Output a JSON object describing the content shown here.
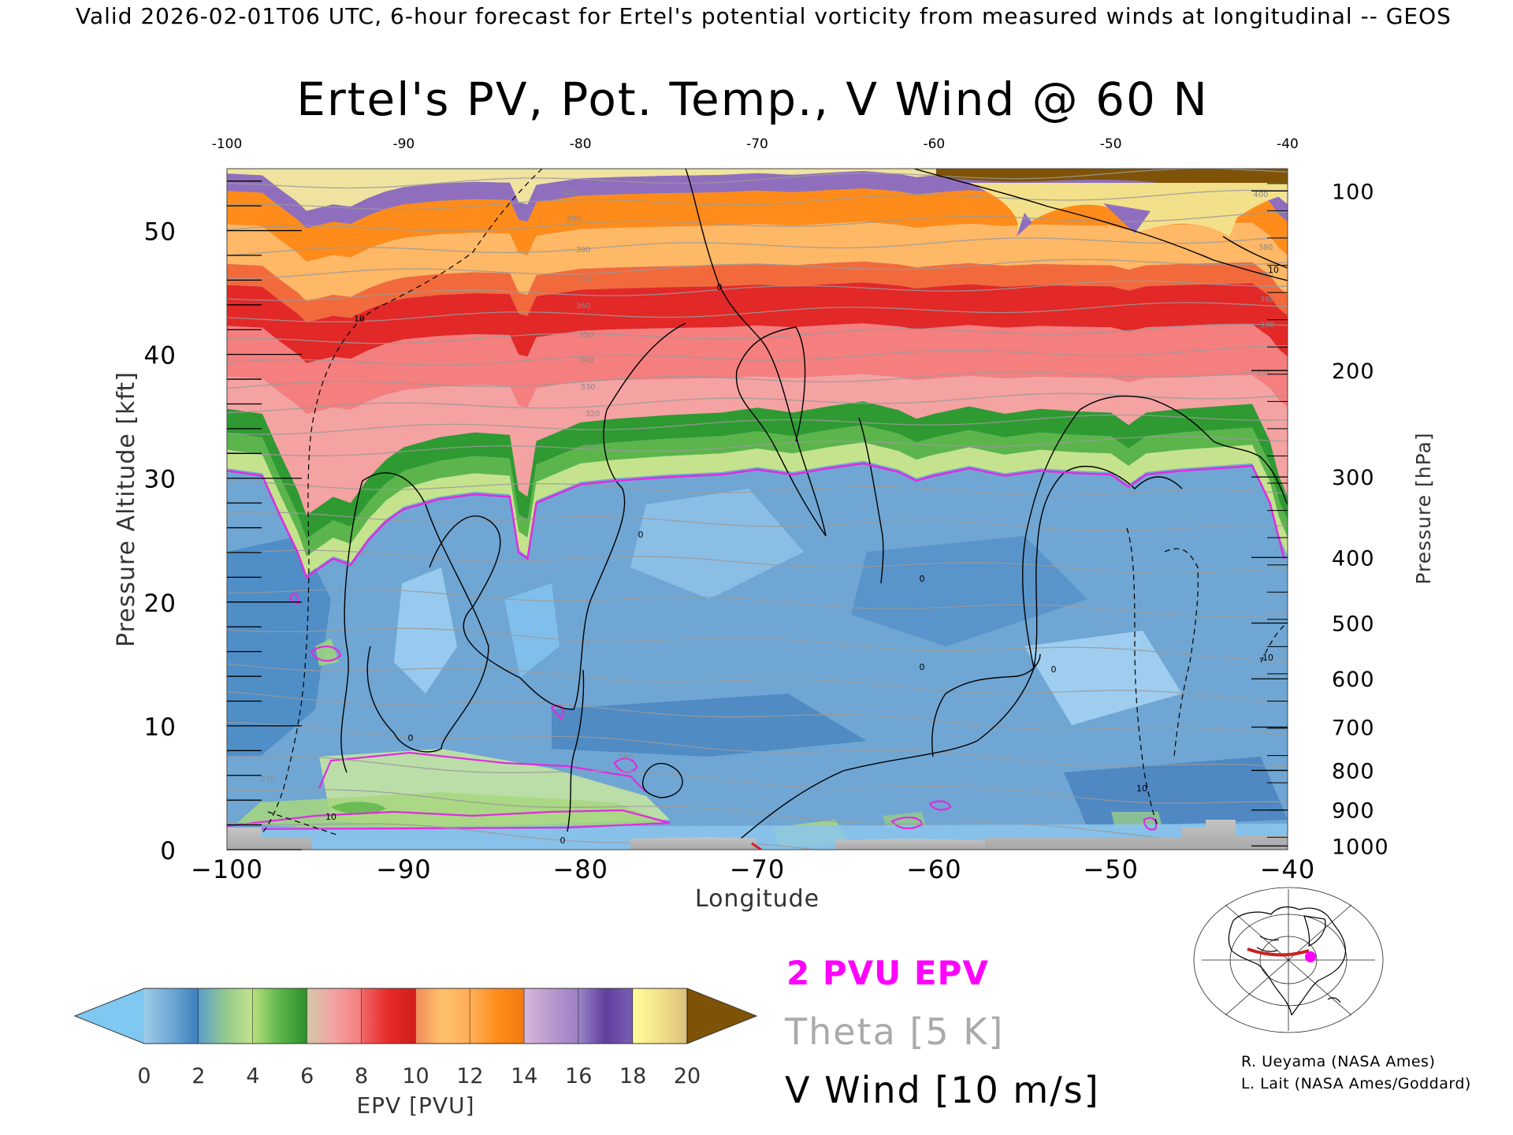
{
  "header": {
    "valid_line": "Valid 2026-02-01T06 UTC, 6-hour forecast for Ertel's potential vorticity from measured winds at longitudinal -- GEOS"
  },
  "chart_data": {
    "type": "heatmap",
    "title": "Ertel's PV, Pot. Temp., V Wind @ 60 N",
    "xlabel": "Longitude",
    "ylabel": "Pressure Altitude [kft]",
    "y2label": "Pressure [hPa]",
    "xlim": [
      -100,
      -40
    ],
    "ylim": [
      0,
      55
    ],
    "x_ticks": [
      "−100",
      "−90",
      "−80",
      "−70",
      "−60",
      "−50",
      "−40"
    ],
    "x_ticks_top": [
      "-100",
      "-90",
      "-80",
      "-70",
      "-60",
      "-50",
      "-40"
    ],
    "y_ticks": [
      "0",
      "10",
      "20",
      "30",
      "40",
      "50"
    ],
    "pressure_ticks": [
      {
        "label": "100",
        "kft": 53.2
      },
      {
        "label": "200",
        "kft": 38.7
      },
      {
        "label": "300",
        "kft": 30.1
      },
      {
        "label": "400",
        "kft": 23.6
      },
      {
        "label": "500",
        "kft": 18.3
      },
      {
        "label": "600",
        "kft": 13.8
      },
      {
        "label": "700",
        "kft": 9.9
      },
      {
        "label": "800",
        "kft": 6.4
      },
      {
        "label": "900",
        "kft": 3.2
      },
      {
        "label": "1000",
        "kft": 0.3
      }
    ],
    "tropopause_2pvu_kft": [
      [
        -100,
        30.6
      ],
      [
        -98,
        30.2
      ],
      [
        -97,
        27
      ],
      [
        -96,
        24
      ],
      [
        -95.5,
        22
      ],
      [
        -95,
        22.5
      ],
      [
        -94,
        23.5
      ],
      [
        -93,
        23
      ],
      [
        -92,
        25
      ],
      [
        -91,
        26.5
      ],
      [
        -90,
        27.5
      ],
      [
        -88,
        28.3
      ],
      [
        -86,
        28.7
      ],
      [
        -84,
        28.5
      ],
      [
        -83.5,
        24
      ],
      [
        -83,
        23.5
      ],
      [
        -82.5,
        28
      ],
      [
        -80,
        29.5
      ],
      [
        -78,
        29.8
      ],
      [
        -75,
        30.1
      ],
      [
        -72,
        30.3
      ],
      [
        -70,
        30.7
      ],
      [
        -68,
        30.3
      ],
      [
        -66,
        30.8
      ],
      [
        -64,
        31.2
      ],
      [
        -62,
        30.5
      ],
      [
        -61,
        29.8
      ],
      [
        -60,
        30.2
      ],
      [
        -58,
        30.8
      ],
      [
        -56,
        30.2
      ],
      [
        -54,
        30.6
      ],
      [
        -52,
        30.4
      ],
      [
        -50,
        30.3
      ],
      [
        -49,
        29.3
      ],
      [
        -48,
        30.3
      ],
      [
        -46,
        30.6
      ],
      [
        -44,
        30.8
      ],
      [
        -42,
        31.0
      ],
      [
        -41,
        28
      ],
      [
        -40.2,
        23.5
      ]
    ],
    "v_wind_contour_labels": [
      "0",
      "10",
      "-10"
    ],
    "theta_contour_labels": [
      "270",
      "280",
      "290",
      "310",
      "320",
      "330",
      "340",
      "350",
      "360",
      "370",
      "380",
      "390",
      "400"
    ],
    "colorbar": {
      "label": "EPV [PVU]",
      "tick_labels": [
        "0",
        "2",
        "4",
        "6",
        "8",
        "10",
        "12",
        "14",
        "16",
        "18",
        "20"
      ],
      "range": [
        0,
        20
      ],
      "extend": "both",
      "under_color": "#7fc8f2",
      "over_color": "#7f5307",
      "segments": [
        {
          "from": 0,
          "to": 2,
          "colors": [
            "#9fcbe8",
            "#6fa8d5",
            "#3b7fbd"
          ]
        },
        {
          "from": 2,
          "to": 4,
          "colors": [
            "#5e9ecb",
            "#93c98f",
            "#c5e38c"
          ]
        },
        {
          "from": 4,
          "to": 6,
          "colors": [
            "#b8e07a",
            "#5bb54b",
            "#2d8f2b"
          ]
        },
        {
          "from": 6,
          "to": 8,
          "colors": [
            "#d3c8a8",
            "#f2a2a2",
            "#f57c7c"
          ]
        },
        {
          "from": 8,
          "to": 10,
          "colors": [
            "#f26868",
            "#e62a2a",
            "#cf1d1d"
          ]
        },
        {
          "from": 10,
          "to": 12,
          "colors": [
            "#f28a5c",
            "#ffc36a",
            "#ffaa55"
          ]
        },
        {
          "from": 12,
          "to": 14,
          "colors": [
            "#ffb058",
            "#ff8c1a",
            "#f07a10"
          ]
        },
        {
          "from": 14,
          "to": 16,
          "colors": [
            "#d9b6d9",
            "#b79ad0",
            "#9d7fc4"
          ]
        },
        {
          "from": 16,
          "to": 18,
          "colors": [
            "#9b86c6",
            "#5f3f9e",
            "#7a5fb3"
          ]
        },
        {
          "from": 18,
          "to": 20,
          "colors": [
            "#ffff9a",
            "#f3e08a",
            "#d9c07a"
          ]
        }
      ]
    },
    "epv_layers_kft": [
      {
        "color": "#f0e3a0",
        "bottom": 54.6,
        "top": 55
      },
      {
        "color": "#8f6fbd",
        "bottom": 53.2,
        "top": 54.6
      },
      {
        "color": "#ff8c1a",
        "bottom": 50.5,
        "top": 53.2
      },
      {
        "color": "#ffb866",
        "bottom": 47.3,
        "top": 50.5
      },
      {
        "color": "#f26a3c",
        "bottom": 45.6,
        "top": 47.3
      },
      {
        "color": "#e32828",
        "bottom": 42.3,
        "top": 45.6
      },
      {
        "color": "#f57e7e",
        "bottom": 38.2,
        "top": 42.3
      },
      {
        "color": "#f5a2a2",
        "bottom": 35.6,
        "top": 38.2
      },
      {
        "color": "#2f9a32",
        "bottom": 33.7,
        "top": 35.6
      },
      {
        "color": "#5bb54b",
        "bottom": 32.3,
        "top": 33.7
      },
      {
        "color": "#c5e38c",
        "bottom": 30.8,
        "top": 32.3
      }
    ]
  },
  "legend": {
    "two_pvu": "2 PVU EPV",
    "theta": "Theta [5 K]",
    "v_wind": "V Wind [10 m/s]"
  },
  "credits": {
    "line1": "R. Ueyama (NASA Ames)",
    "line2": "L. Lait (NASA Ames/Goddard)"
  },
  "colors": {
    "tropopause_line": "#e02ce0",
    "theta_line": "#9a9a9a",
    "v_wind_line": "#000000",
    "terrain": "#b8b8b8",
    "transect_marker": "#cc2020",
    "location_dot": "#ff00ff"
  }
}
